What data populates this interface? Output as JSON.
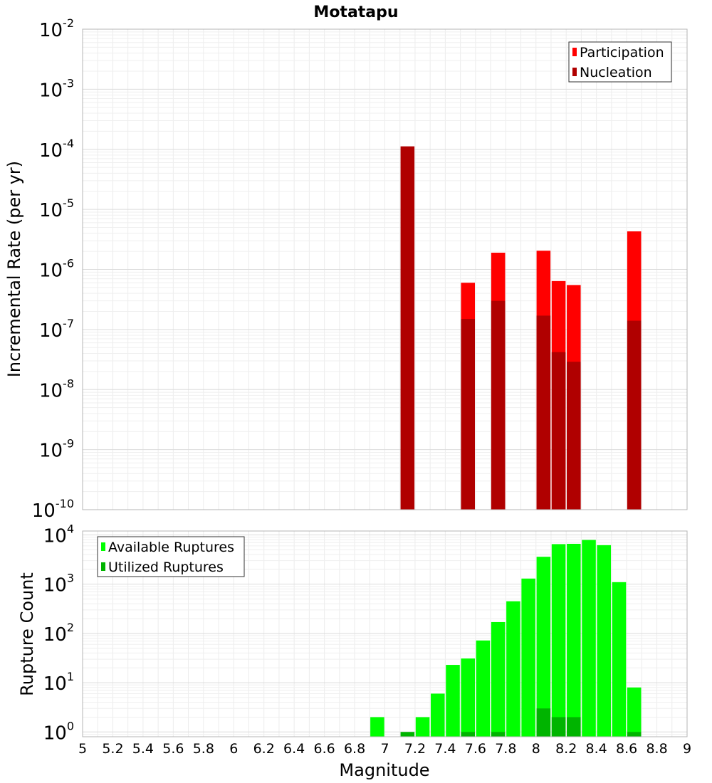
{
  "chart_data": [
    {
      "type": "bar",
      "title": "Motatapu",
      "xlabel": "",
      "ylabel": "Incremental Rate (per yr)",
      "y_scale": "log",
      "ylim": [
        1e-10,
        0.01
      ],
      "y_ticks": [
        {
          "base": "10",
          "exp": "-10"
        },
        {
          "base": "10",
          "exp": "-9"
        },
        {
          "base": "10",
          "exp": "-8"
        },
        {
          "base": "10",
          "exp": "-7"
        },
        {
          "base": "10",
          "exp": "-6"
        },
        {
          "base": "10",
          "exp": "-5"
        },
        {
          "base": "10",
          "exp": "-4"
        },
        {
          "base": "10",
          "exp": "-3"
        },
        {
          "base": "10",
          "exp": "-2"
        }
      ],
      "xlim": [
        5,
        9
      ],
      "bar_width": 0.1,
      "grid": true,
      "legend_position": "top-right",
      "series": [
        {
          "name": "Participation",
          "color": "#ff0000",
          "x": [
            7.55,
            7.75,
            8.05,
            8.15,
            8.25,
            8.65
          ],
          "values": [
            6e-07,
            1.9e-06,
            2.05e-06,
            6.4e-07,
            5.5e-07,
            4.3e-06
          ]
        },
        {
          "name": "Nucleation",
          "color": "#b00000",
          "x": [
            7.15,
            7.55,
            7.75,
            8.05,
            8.15,
            8.25,
            8.65
          ],
          "values": [
            0.000112,
            1.5e-07,
            3e-07,
            1.7e-07,
            4.2e-08,
            2.9e-08,
            1.4e-07
          ]
        }
      ]
    },
    {
      "type": "bar",
      "title": "",
      "xlabel": "Magnitude",
      "ylabel": "Rupture Count",
      "y_scale": "log",
      "ylim": [
        0.8,
        12000
      ],
      "y_ticks": [
        {
          "base": "10",
          "exp": "0",
          "value": 1
        },
        {
          "base": "10",
          "exp": "1",
          "value": 10
        },
        {
          "base": "10",
          "exp": "2",
          "value": 100
        },
        {
          "base": "10",
          "exp": "3",
          "value": 1000
        },
        {
          "base": "10",
          "exp": "4",
          "value": 10000
        }
      ],
      "xlim": [
        5,
        9
      ],
      "x_ticks": [
        "5",
        "5.2",
        "5.4",
        "5.6",
        "5.8",
        "6",
        "6.2",
        "6.4",
        "6.6",
        "6.8",
        "7",
        "7.2",
        "7.4",
        "7.6",
        "7.8",
        "8",
        "8.2",
        "8.4",
        "8.6",
        "8.8",
        "9"
      ],
      "bar_width": 0.1,
      "grid": true,
      "legend_position": "top-left",
      "series": [
        {
          "name": "Available Ruptures",
          "color": "#00ff00",
          "x": [
            6.95,
            7.25,
            7.35,
            7.45,
            7.55,
            7.65,
            7.75,
            7.85,
            7.95,
            8.05,
            8.15,
            8.25,
            8.35,
            8.45,
            8.55,
            8.65
          ],
          "values": [
            2,
            2,
            6,
            23,
            31,
            72,
            170,
            450,
            1300,
            3600,
            6500,
            6600,
            7900,
            6200,
            1100,
            8
          ]
        },
        {
          "name": "Utilized Ruptures",
          "color": "#00b400",
          "x": [
            7.15,
            7.55,
            7.75,
            8.05,
            8.15,
            8.25,
            8.65
          ],
          "values": [
            1,
            1,
            1,
            3,
            2,
            2,
            1
          ]
        }
      ]
    }
  ]
}
